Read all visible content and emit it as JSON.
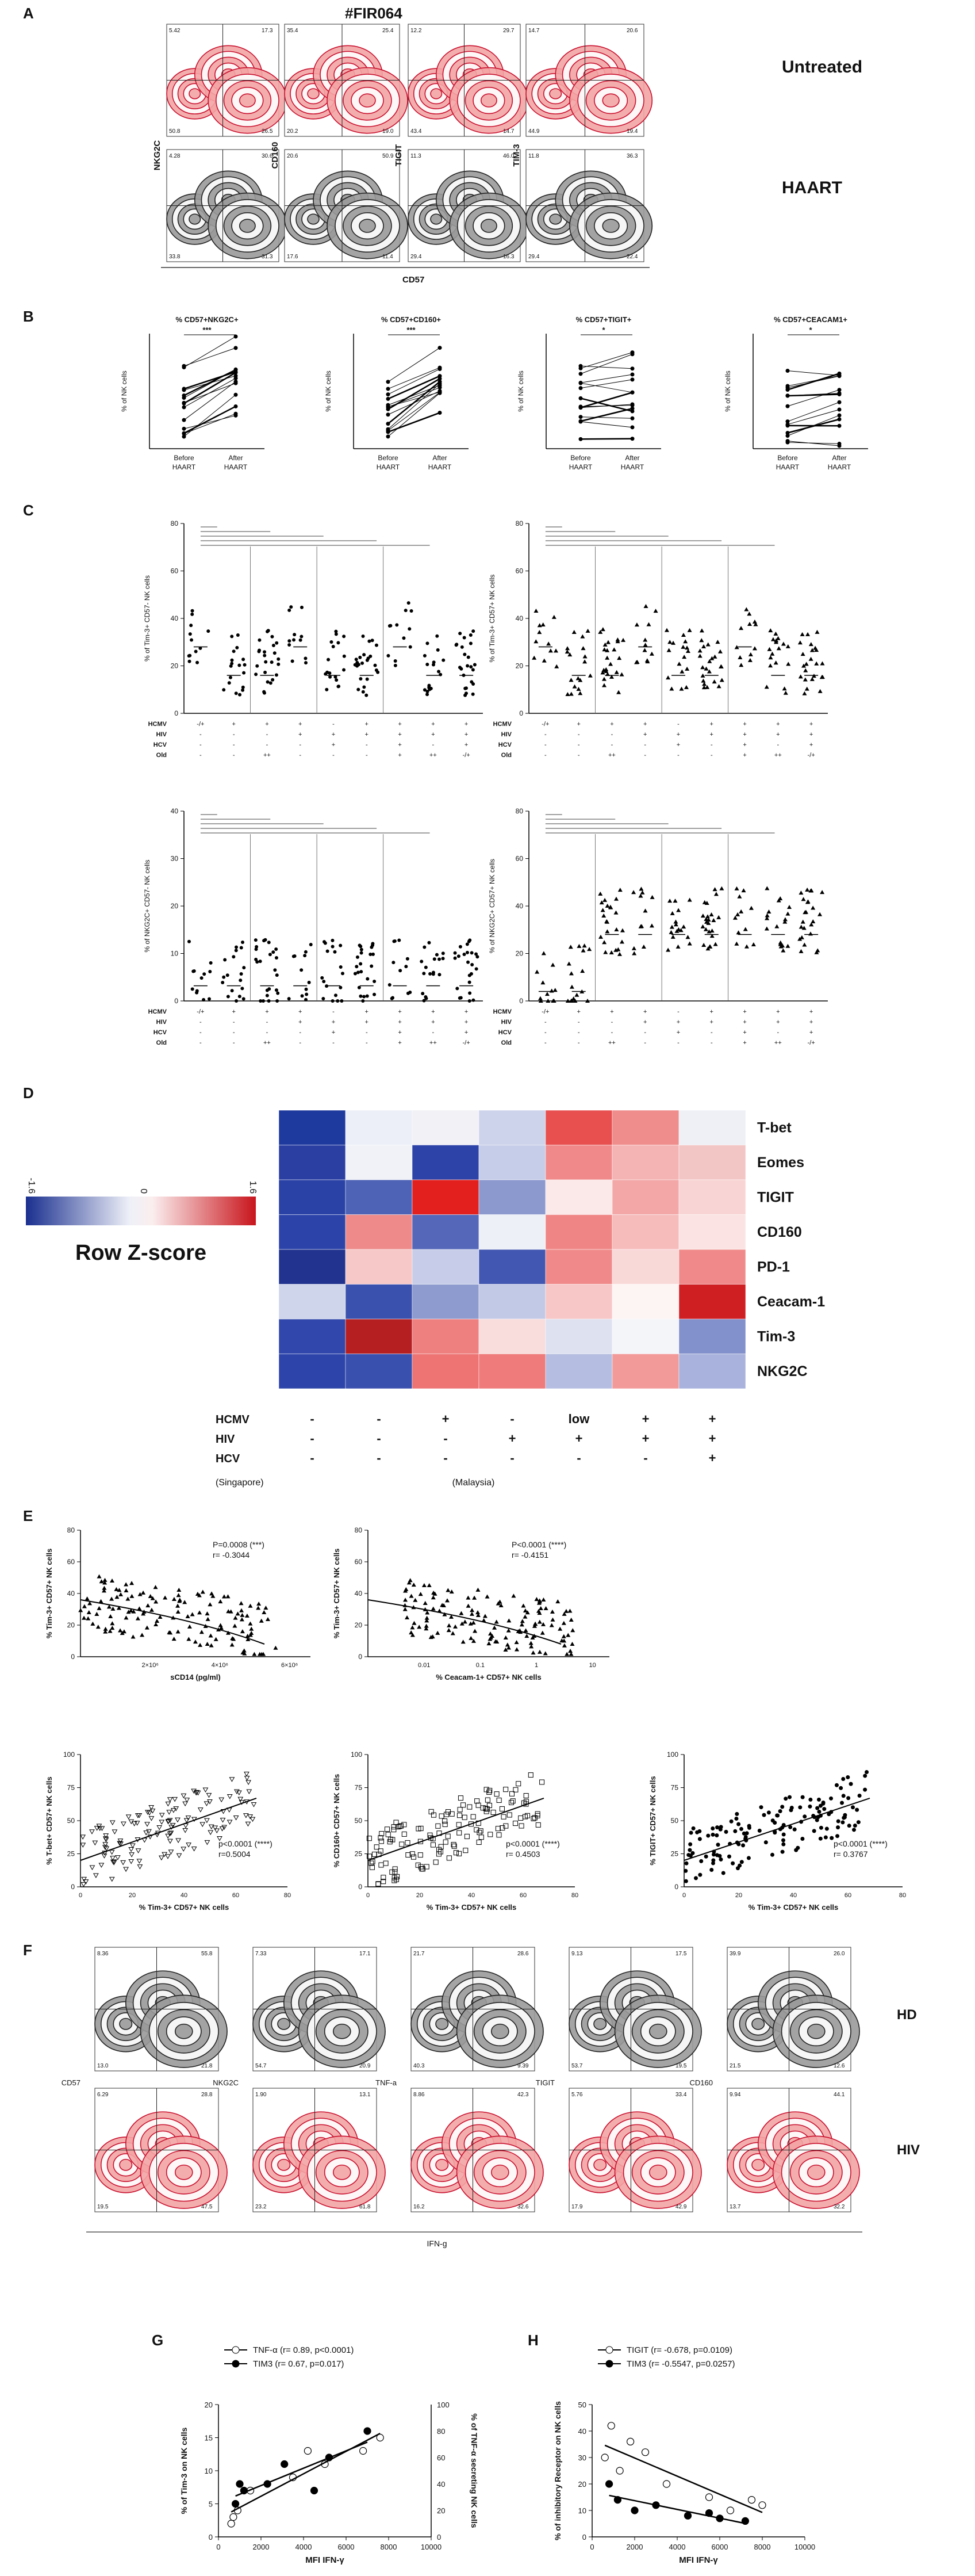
{
  "panels": {
    "A": "A",
    "B": "B",
    "C": "C",
    "D": "D",
    "E": "E",
    "F": "F",
    "G": "G",
    "H": "H"
  },
  "panelA": {
    "title": "#FIR064",
    "markers": [
      "NKG2C",
      "CD160",
      "TIGIT",
      "TIM-3"
    ],
    "xlabel": "CD57",
    "rows": [
      "Untreated",
      "HAART"
    ],
    "quadrants": [
      [
        [
          "5.42",
          "17.3",
          "50.8",
          "26.5"
        ],
        [
          "35.4",
          "25.4",
          "20.2",
          "19.0"
        ],
        [
          "12.2",
          "29.7",
          "43.4",
          "14.7"
        ],
        [
          "14.7",
          "20.6",
          "44.9",
          "19.4"
        ]
      ],
      [
        [
          "4.28",
          "30.6",
          "33.8",
          "31.3"
        ],
        [
          "20.6",
          "50.9",
          "17.6",
          "11.4"
        ],
        [
          "11.3",
          "46.0",
          "29.4",
          "16.3"
        ],
        [
          "11.8",
          "36.3",
          "29.4",
          "22.4"
        ]
      ]
    ]
  },
  "panelB": {
    "ylabel": "% of NK cells",
    "xticks": [
      "Before HAART",
      "After HAART"
    ],
    "plots": [
      {
        "title": "% CD57+NKG2C+",
        "sig": "***"
      },
      {
        "title": "% CD57+CD160+",
        "sig": "***"
      },
      {
        "title": "% CD57+TIGIT+",
        "sig": "*"
      },
      {
        "title": "% CD57+CEACAM1+",
        "sig": "*"
      }
    ]
  },
  "panelC": {
    "plots": [
      {
        "ylabel": "% of Tim-3+ CD57- NK cells",
        "ymax": 80
      },
      {
        "ylabel": "% of Tim-3+ CD57+ NK cells",
        "ymax": 80
      },
      {
        "ylabel": "% of NKG2C+ CD57- NK cells",
        "ymax": 40
      },
      {
        "ylabel": "% of NKG2C+ CD57+ NK cells",
        "ymax": 80
      }
    ],
    "rowlabels": [
      "HCMV",
      "HIV",
      "HCV",
      "Old"
    ],
    "groups": [
      [
        "-/+",
        "-",
        "-",
        "-"
      ],
      [
        "+",
        "-",
        "-",
        "-"
      ],
      [
        "+",
        "-",
        "-",
        "++"
      ],
      [
        "+",
        "+",
        "-",
        "-"
      ],
      [
        "-",
        "+",
        "+",
        "-"
      ],
      [
        "+",
        "+",
        "-",
        "-"
      ],
      [
        "+",
        "+",
        "+",
        "+"
      ],
      [
        "+",
        "+",
        "-",
        "++"
      ],
      [
        "+",
        "+",
        "+",
        "-/+"
      ]
    ],
    "sig_labels": [
      "**",
      "****",
      "**",
      "*",
      "****",
      "**"
    ]
  },
  "panelD": {
    "legend_title": "Row Z-score",
    "legend_min": "-1.6",
    "legend_mid": "0",
    "legend_max": "1.6",
    "rows": [
      "T-bet",
      "Eomes",
      "TIGIT",
      "CD160",
      "PD-1",
      "Ceacam-1",
      "Tim-3",
      "NKG2C"
    ],
    "colors": [
      [
        "#1f3a9e",
        "#eceff7",
        "#f1f1f6",
        "#cdd3ea",
        "#e85050",
        "#ef8c8c",
        "#eef0f6"
      ],
      [
        "#2b3fa3",
        "#f1f2f7",
        "#2d43a8",
        "#c6cde8",
        "#f08a8a",
        "#f5b4b4",
        "#f3c6c6"
      ],
      [
        "#2a41a6",
        "#4e63b6",
        "#e4201f",
        "#8c99cf",
        "#fbe8e8",
        "#f3a7a7",
        "#f9d4d4"
      ],
      [
        "#2c44aa",
        "#ee8a8a",
        "#5467b9",
        "#eef0f7",
        "#ef8585",
        "#f6bcbc",
        "#fbe3e3"
      ],
      [
        "#21338f",
        "#f7c8c8",
        "#c7cde8",
        "#4257b1",
        "#f08a8a",
        "#f9d8d8",
        "#f08a8a"
      ],
      [
        "#cfd5ea",
        "#3b51ae",
        "#8e9bcf",
        "#c2c9e6",
        "#f7c6c6",
        "#fdf4f4",
        "#cf1f22"
      ],
      [
        "#3147ab",
        "#b51f22",
        "#ef8080",
        "#f9dcdc",
        "#dde1f0",
        "#f4f5f9",
        "#8290cb"
      ],
      [
        "#2d45aa",
        "#3a50ae",
        "#ee7373",
        "#ef7b7b",
        "#b5bde0",
        "#f29a9a",
        "#a8b2dc"
      ]
    ],
    "factors": [
      "HCMV",
      "HIV",
      "HCV"
    ],
    "columns": [
      [
        "-",
        "-",
        "-"
      ],
      [
        "-",
        "-",
        "-"
      ],
      [
        "+",
        "-",
        "-"
      ],
      [
        "-",
        "+",
        "-"
      ],
      [
        "low",
        "+",
        "-"
      ],
      [
        "+",
        "+",
        "-"
      ],
      [
        "+",
        "+",
        "+"
      ]
    ],
    "origin_left": "(Singapore)",
    "origin_right": "(Malaysia)"
  },
  "panelE": {
    "plots": [
      {
        "ylabel": "% Tim-3+ CD57+ NK cells",
        "xlabel": "sCD14 (pg/ml)",
        "p": "P=0.0008 (***)",
        "r": "r= -0.3044",
        "xticks": [
          "2×10⁶",
          "4×10⁶",
          "6×10⁶"
        ]
      },
      {
        "ylabel": "% Tim-3+ CD57+ NK cells",
        "xlabel": "% Ceacam-1+ CD57+ NK cells",
        "p": "P<0.0001 (****)",
        "r": "r= -0.4151",
        "xticks": [
          "0.01",
          "0.1",
          "1",
          "10"
        ]
      },
      {
        "ylabel": "% T-bet+ CD57+ NK cells",
        "xlabel": "% Tim-3+ CD57+ NK cells",
        "p": "p<0.0001 (****)",
        "r": "r=0.5004"
      },
      {
        "ylabel": "% CD160+ CD57+ NK cells",
        "xlabel": "% Tim-3+ CD57+ NK cells",
        "p": "p<0.0001 (****)",
        "r": "r= 0.4503"
      },
      {
        "ylabel": "% TIGIT+ CD57+ NK cells",
        "xlabel": "% Tim-3+ CD57+ NK cells",
        "p": "p<0.0001 (****)",
        "r": "r= 0.3767"
      }
    ]
  },
  "panelF": {
    "markers": [
      "CD57",
      "NKG2C",
      "TNF-a",
      "TIGIT",
      "CD160"
    ],
    "xlabel": "IFN-g",
    "rows": [
      "HD",
      "HIV"
    ],
    "quadrants": [
      [
        [
          "8.36",
          "55.8",
          "13.0",
          "21.8"
        ],
        [
          "7.33",
          "17.1",
          "54.7",
          "20.9"
        ],
        [
          "21.7",
          "28.6",
          "40.3",
          "9.39"
        ],
        [
          "9.13",
          "17.5",
          "53.7",
          "19.5"
        ],
        [
          "39.9",
          "26.0",
          "21.5",
          "12.6"
        ]
      ],
      [
        [
          "6.29",
          "28.8",
          "19.5",
          "47.5"
        ],
        [
          "1.90",
          "13.1",
          "23.2",
          "61.8"
        ],
        [
          "8.86",
          "42.3",
          "16.2",
          "32.6"
        ],
        [
          "5.76",
          "33.4",
          "17.9",
          "42.9"
        ],
        [
          "9.94",
          "44.1",
          "13.7",
          "32.2"
        ]
      ]
    ]
  },
  "panelG": {
    "legend": [
      "TNF-α (r= 0.89, p<0.0001)",
      "TIM3 (r= 0.67, p=0.017)"
    ],
    "ylabel_left": "% of Tim-3 on NK cells",
    "ylabel_right": "% of TNF-α secreting NK cells",
    "xlabel": "MFI IFN-γ"
  },
  "panelH": {
    "legend": [
      "TIGIT (r= -0.678, p=0.0109)",
      "TIM3 (r= -0.5547, p=0.0257)"
    ],
    "ylabel": "% of inhibitory Receptor on NK cells",
    "xlabel": "MFI IFN-γ"
  },
  "chart_data": [
    {
      "type": "scatter",
      "id": "G",
      "title": "",
      "xlabel": "MFI IFN-γ",
      "ylabel": "% of Tim-3 on NK cells",
      "xlim": [
        0,
        10000
      ],
      "ylim": [
        0,
        20
      ],
      "series": [
        {
          "name": "TNF-α",
          "x": [
            600,
            700,
            900,
            1500,
            3500,
            4200,
            5000,
            6800,
            7600
          ],
          "y": [
            2,
            3,
            4,
            7,
            9,
            13,
            11,
            13,
            15
          ]
        },
        {
          "name": "TIM3",
          "x": [
            800,
            1000,
            1200,
            2300,
            3100,
            4500,
            5200,
            7000
          ],
          "y": [
            5,
            8,
            7,
            8,
            11,
            7,
            12,
            16
          ]
        }
      ]
    },
    {
      "type": "scatter",
      "id": "H",
      "title": "",
      "xlabel": "MFI IFN-γ",
      "ylabel": "% of inhibitory Receptor on NK cells",
      "xlim": [
        0,
        10000
      ],
      "ylim": [
        0,
        50
      ],
      "series": [
        {
          "name": "TIGIT",
          "x": [
            600,
            900,
            1300,
            1800,
            2500,
            3500,
            5500,
            6500,
            7500,
            8000
          ],
          "y": [
            30,
            42,
            25,
            36,
            32,
            20,
            15,
            10,
            14,
            12
          ]
        },
        {
          "name": "TIM3",
          "x": [
            800,
            1200,
            2000,
            3000,
            4500,
            5500,
            6000,
            7200
          ],
          "y": [
            20,
            14,
            10,
            12,
            8,
            9,
            7,
            6
          ]
        }
      ]
    }
  ]
}
